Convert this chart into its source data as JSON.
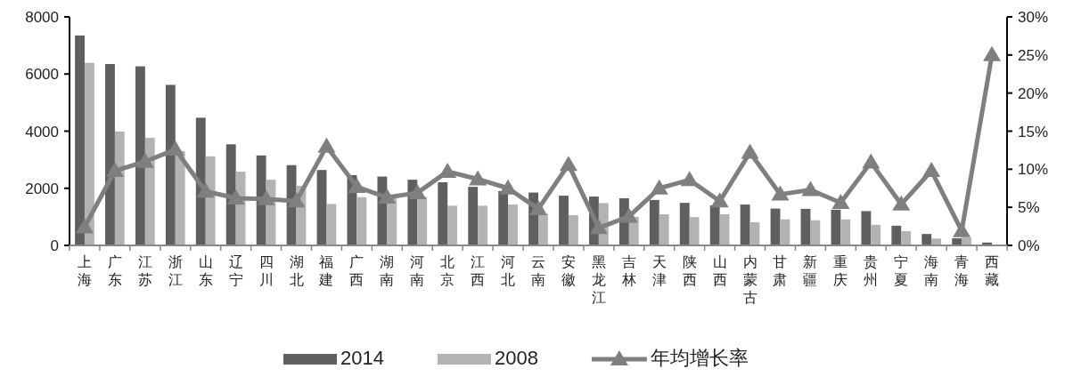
{
  "chart_data": {
    "type": "bar",
    "categories": [
      "上海",
      "广东",
      "江苏",
      "浙江",
      "山东",
      "辽宁",
      "四川",
      "湖北",
      "福建",
      "广西",
      "湖南",
      "河南",
      "北京",
      "江西",
      "河北",
      "云南",
      "安徽",
      "黑龙江",
      "吉林",
      "天津",
      "陕西",
      "山西",
      "内蒙古",
      "甘肃",
      "新疆",
      "重庆",
      "贵州",
      "宁夏",
      "海南",
      "青海",
      "西藏"
    ],
    "series": [
      {
        "name": "2014",
        "color": "#5f5f5f",
        "values": [
          7350,
          6350,
          6270,
          5620,
          4470,
          3540,
          3150,
          2810,
          2640,
          2460,
          2410,
          2300,
          2210,
          2050,
          1900,
          1850,
          1740,
          1710,
          1650,
          1590,
          1490,
          1400,
          1430,
          1290,
          1280,
          1250,
          1200,
          690,
          400,
          250,
          100
        ]
      },
      {
        "name": "2008",
        "color": "#b3b3b3",
        "values": [
          6390,
          3990,
          3770,
          3300,
          3120,
          2580,
          2300,
          2090,
          1450,
          1690,
          1650,
          1700,
          1390,
          1390,
          1430,
          1100,
          1060,
          1480,
          1000,
          1090,
          990,
          1090,
          810,
          910,
          880,
          910,
          720,
          500,
          240,
          280,
          null
        ]
      },
      {
        "name": "年均增长率",
        "type": "line",
        "axis": "y2",
        "marker": "triangle",
        "color": "#7f7f7f",
        "values": [
          2.4,
          9.8,
          11.0,
          12.6,
          7.1,
          6.2,
          6.1,
          5.8,
          13.0,
          7.7,
          6.3,
          6.9,
          9.7,
          8.7,
          7.5,
          4.8,
          10.6,
          2.3,
          3.8,
          7.5,
          8.6,
          5.8,
          12.2,
          6.7,
          7.3,
          5.6,
          10.9,
          5.4,
          9.8,
          1.9,
          25.0
        ]
      }
    ],
    "ylim": [
      0,
      8000
    ],
    "yticks": [
      0,
      2000,
      4000,
      6000,
      8000
    ],
    "y2lim": [
      0,
      30
    ],
    "y2ticks": [
      {
        "value": 0,
        "label": "0%"
      },
      {
        "value": 5,
        "label": "5%"
      },
      {
        "value": 10,
        "label": "10%"
      },
      {
        "value": 15,
        "label": "15%"
      },
      {
        "value": 20,
        "label": "20%"
      },
      {
        "value": 25,
        "label": "25%"
      },
      {
        "value": 30,
        "label": "30%"
      }
    ],
    "grid": false,
    "legend": "bottom"
  }
}
